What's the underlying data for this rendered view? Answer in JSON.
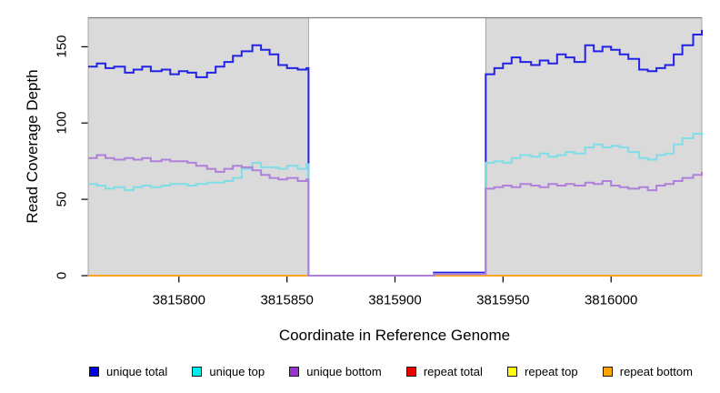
{
  "figure": {
    "background": "#ffffff",
    "panel_fill": "#dadada",
    "panel_edge": "#9a9a9a",
    "top_border_color": "#7d7d7d",
    "tick_color": "#000000"
  },
  "chart_data": {
    "type": "line",
    "line_style": "step",
    "xlabel": "Coordinate in Reference Genome",
    "ylabel": "Read Coverage Depth",
    "xlim": [
      3815758,
      3816042
    ],
    "ylim": [
      0,
      169
    ],
    "x_ticks": [
      3815800,
      3815850,
      3815900,
      3815950,
      3816000
    ],
    "y_ticks": [
      0,
      50,
      100,
      150
    ],
    "grid": false,
    "legend_position": "bottom-horizontal",
    "shaded_regions": [
      {
        "x0": 3815758,
        "x1": 3815860,
        "fill": "#dadada"
      },
      {
        "x0": 3815942,
        "x1": 3816042,
        "fill": "#dadada"
      }
    ],
    "draw_order": [
      3,
      4,
      5,
      0,
      1,
      2
    ],
    "series": [
      {
        "name": "unique total",
        "line_color": "#2222e6",
        "legend_color": "#0000ee",
        "line_width": 2,
        "points": [
          [
            3815758,
            137
          ],
          [
            3815762,
            139
          ],
          [
            3815766,
            136
          ],
          [
            3815770,
            137
          ],
          [
            3815775,
            133
          ],
          [
            3815779,
            135
          ],
          [
            3815783,
            137
          ],
          [
            3815787,
            134
          ],
          [
            3815792,
            135
          ],
          [
            3815796,
            132
          ],
          [
            3815800,
            134
          ],
          [
            3815804,
            133
          ],
          [
            3815808,
            130
          ],
          [
            3815813,
            133
          ],
          [
            3815817,
            137
          ],
          [
            3815821,
            140
          ],
          [
            3815825,
            144
          ],
          [
            3815829,
            147
          ],
          [
            3815834,
            151
          ],
          [
            3815838,
            148
          ],
          [
            3815842,
            145
          ],
          [
            3815846,
            138
          ],
          [
            3815850,
            136
          ],
          [
            3815855,
            135
          ],
          [
            3815859,
            136
          ],
          [
            3815860,
            0
          ],
          [
            3815916,
            0
          ],
          [
            3815918,
            2
          ],
          [
            3815941,
            2
          ],
          [
            3815942,
            132
          ],
          [
            3815946,
            136
          ],
          [
            3815950,
            139
          ],
          [
            3815954,
            143
          ],
          [
            3815958,
            140
          ],
          [
            3815963,
            138
          ],
          [
            3815967,
            141
          ],
          [
            3815971,
            139
          ],
          [
            3815975,
            145
          ],
          [
            3815979,
            143
          ],
          [
            3815983,
            140
          ],
          [
            3815988,
            151
          ],
          [
            3815992,
            147
          ],
          [
            3815996,
            150
          ],
          [
            3816000,
            148
          ],
          [
            3816004,
            145
          ],
          [
            3816008,
            142
          ],
          [
            3816013,
            135
          ],
          [
            3816017,
            134
          ],
          [
            3816021,
            136
          ],
          [
            3816025,
            138
          ],
          [
            3816029,
            145
          ],
          [
            3816033,
            151
          ],
          [
            3816038,
            158
          ],
          [
            3816042,
            161
          ]
        ]
      },
      {
        "name": "unique top",
        "line_color": "#7edde6",
        "legend_color": "#00eeee",
        "line_width": 2,
        "points": [
          [
            3815758,
            60
          ],
          [
            3815762,
            59
          ],
          [
            3815766,
            57
          ],
          [
            3815770,
            58
          ],
          [
            3815775,
            56
          ],
          [
            3815779,
            58
          ],
          [
            3815783,
            59
          ],
          [
            3815787,
            58
          ],
          [
            3815792,
            59
          ],
          [
            3815796,
            60
          ],
          [
            3815800,
            60
          ],
          [
            3815804,
            59
          ],
          [
            3815808,
            60
          ],
          [
            3815813,
            61
          ],
          [
            3815817,
            61
          ],
          [
            3815821,
            62
          ],
          [
            3815825,
            64
          ],
          [
            3815829,
            70
          ],
          [
            3815834,
            74
          ],
          [
            3815838,
            71
          ],
          [
            3815842,
            71
          ],
          [
            3815846,
            70
          ],
          [
            3815850,
            72
          ],
          [
            3815855,
            70
          ],
          [
            3815859,
            73
          ],
          [
            3815860,
            0
          ],
          [
            3815916,
            0
          ],
          [
            3815918,
            1
          ],
          [
            3815941,
            1
          ],
          [
            3815942,
            74
          ],
          [
            3815946,
            75
          ],
          [
            3815950,
            74
          ],
          [
            3815954,
            77
          ],
          [
            3815958,
            79
          ],
          [
            3815963,
            78
          ],
          [
            3815967,
            80
          ],
          [
            3815971,
            78
          ],
          [
            3815975,
            79
          ],
          [
            3815979,
            81
          ],
          [
            3815983,
            80
          ],
          [
            3815988,
            84
          ],
          [
            3815992,
            86
          ],
          [
            3815996,
            84
          ],
          [
            3816000,
            85
          ],
          [
            3816004,
            84
          ],
          [
            3816008,
            81
          ],
          [
            3816013,
            77
          ],
          [
            3816017,
            76
          ],
          [
            3816021,
            79
          ],
          [
            3816025,
            80
          ],
          [
            3816029,
            86
          ],
          [
            3816033,
            90
          ],
          [
            3816038,
            93
          ],
          [
            3816042,
            91
          ]
        ]
      },
      {
        "name": "unique bottom",
        "line_color": "#af7fda",
        "legend_color": "#9a32cd",
        "line_width": 2,
        "points": [
          [
            3815758,
            77
          ],
          [
            3815762,
            79
          ],
          [
            3815766,
            77
          ],
          [
            3815770,
            76
          ],
          [
            3815775,
            77
          ],
          [
            3815779,
            76
          ],
          [
            3815783,
            77
          ],
          [
            3815787,
            75
          ],
          [
            3815792,
            76
          ],
          [
            3815796,
            75
          ],
          [
            3815800,
            75
          ],
          [
            3815804,
            74
          ],
          [
            3815808,
            72
          ],
          [
            3815813,
            70
          ],
          [
            3815817,
            68
          ],
          [
            3815821,
            70
          ],
          [
            3815825,
            72
          ],
          [
            3815829,
            71
          ],
          [
            3815834,
            69
          ],
          [
            3815838,
            66
          ],
          [
            3815842,
            64
          ],
          [
            3815846,
            63
          ],
          [
            3815850,
            64
          ],
          [
            3815855,
            62
          ],
          [
            3815859,
            63
          ],
          [
            3815860,
            0
          ],
          [
            3815916,
            0
          ],
          [
            3815918,
            1
          ],
          [
            3815941,
            1
          ],
          [
            3815942,
            57
          ],
          [
            3815946,
            58
          ],
          [
            3815950,
            59
          ],
          [
            3815954,
            58
          ],
          [
            3815958,
            60
          ],
          [
            3815963,
            59
          ],
          [
            3815967,
            58
          ],
          [
            3815971,
            60
          ],
          [
            3815975,
            59
          ],
          [
            3815979,
            60
          ],
          [
            3815983,
            59
          ],
          [
            3815988,
            61
          ],
          [
            3815992,
            60
          ],
          [
            3815996,
            62
          ],
          [
            3816000,
            59
          ],
          [
            3816004,
            58
          ],
          [
            3816008,
            57
          ],
          [
            3816013,
            58
          ],
          [
            3816017,
            56
          ],
          [
            3816021,
            59
          ],
          [
            3816025,
            60
          ],
          [
            3816029,
            62
          ],
          [
            3816033,
            64
          ],
          [
            3816038,
            66
          ],
          [
            3816042,
            68
          ]
        ]
      },
      {
        "name": "repeat total",
        "line_color": "#cc0000",
        "legend_color": "#ee0000",
        "line_width": 2,
        "points": [
          [
            3815758,
            0
          ],
          [
            3816042,
            0
          ]
        ]
      },
      {
        "name": "repeat top",
        "line_color": "#ffe100",
        "legend_color": "#ffff00",
        "line_width": 2,
        "points": [
          [
            3815758,
            0
          ],
          [
            3816042,
            0
          ]
        ]
      },
      {
        "name": "repeat bottom",
        "line_color": "#ffa41e",
        "legend_color": "#ffa500",
        "line_width": 2,
        "points": [
          [
            3815758,
            0
          ],
          [
            3816042,
            0
          ]
        ]
      }
    ]
  }
}
